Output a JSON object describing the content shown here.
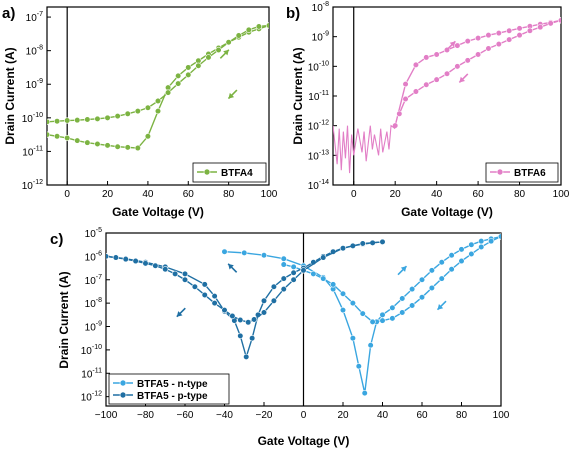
{
  "panel_labels": [
    "a)",
    "b)",
    "c)"
  ],
  "chart_data": [
    {
      "type": "line",
      "panel": "a)",
      "xlabel": "Gate Voltage (V)",
      "ylabel": "Drain Current (A)",
      "xlim": [
        -10,
        100
      ],
      "ylim_log10": [
        -12,
        -6.7
      ],
      "yscale": "log",
      "x_ticks": [
        0,
        20,
        40,
        60,
        80,
        100
      ],
      "x_tick_labels": [
        "0",
        "20",
        "40",
        "60",
        "80",
        "100"
      ],
      "y_ticks_log10": [
        -12,
        -11,
        -10,
        -9,
        -8,
        -7
      ],
      "y_tick_labels": [
        [
          "10",
          "-12"
        ],
        [
          "10",
          "-11"
        ],
        [
          "10",
          "-10"
        ],
        [
          "10",
          "-9"
        ],
        [
          "10",
          "-8"
        ],
        [
          "10",
          "-7"
        ]
      ],
      "color": "#7cb342",
      "legend": {
        "position": "bottom-right",
        "entries": [
          "BTFA4"
        ]
      },
      "arrows": [
        {
          "x": 78,
          "log10_y": -8.1,
          "direction": "up-right"
        },
        {
          "x": 82,
          "log10_y": -9.3,
          "direction": "down-left"
        }
      ],
      "series": [
        {
          "name": "BTFA4",
          "x": [
            -10,
            -5,
            0,
            5,
            10,
            15,
            20,
            25,
            30,
            35,
            40,
            45,
            50,
            55,
            60,
            65,
            70,
            75,
            80,
            85,
            90,
            95,
            100
          ],
          "log10_y": [
            -10.5,
            -10.55,
            -10.6,
            -10.68,
            -10.74,
            -10.78,
            -10.82,
            -10.86,
            -10.88,
            -10.9,
            -10.55,
            -9.8,
            -9.1,
            -8.75,
            -8.5,
            -8.3,
            -8.1,
            -7.92,
            -7.75,
            -7.6,
            -7.45,
            -7.35,
            -7.25
          ]
        },
        {
          "name": "",
          "x": [
            100,
            95,
            90,
            85,
            80,
            75,
            70,
            65,
            60,
            55,
            50,
            45,
            40,
            35,
            30,
            25,
            20,
            15,
            10,
            5,
            0,
            -5,
            -10
          ],
          "log10_y": [
            -7.25,
            -7.28,
            -7.38,
            -7.55,
            -7.75,
            -7.98,
            -8.2,
            -8.45,
            -8.72,
            -8.98,
            -9.25,
            -9.5,
            -9.7,
            -9.8,
            -9.88,
            -9.95,
            -10.0,
            -10.03,
            -10.05,
            -10.07,
            -10.08,
            -10.1,
            -10.12
          ]
        }
      ]
    },
    {
      "type": "line",
      "panel": "b)",
      "xlabel": "Gate Voltage (V)",
      "ylabel": "Drain Current (A)",
      "xlim": [
        -10,
        100
      ],
      "ylim_log10": [
        -14,
        -8
      ],
      "yscale": "log",
      "x_ticks": [
        0,
        20,
        40,
        60,
        80,
        100
      ],
      "x_tick_labels": [
        "0",
        "20",
        "40",
        "60",
        "80",
        "100"
      ],
      "y_ticks_log10": [
        -14,
        -13,
        -12,
        -11,
        -10,
        -9,
        -8
      ],
      "y_tick_labels": [
        [
          "10",
          "-14"
        ],
        [
          "10",
          "-13"
        ],
        [
          "10",
          "-12"
        ],
        [
          "10",
          "-11"
        ],
        [
          "10",
          "-10"
        ],
        [
          "10",
          "-9"
        ],
        [
          "10",
          "-8"
        ]
      ],
      "color": "#e27ec6",
      "legend": {
        "position": "bottom-right",
        "entries": [
          "BTFA6"
        ]
      },
      "arrows": [
        {
          "x": 47,
          "log10_y": -9.3,
          "direction": "up-right"
        },
        {
          "x": 53,
          "log10_y": -10.4,
          "direction": "down-left"
        }
      ],
      "series": [
        {
          "name": "BTFA6",
          "x": [
            20,
            25,
            30,
            35,
            40,
            45,
            50,
            55,
            60,
            65,
            70,
            75,
            80,
            85,
            90,
            95,
            100
          ],
          "log10_y": [
            -12.0,
            -10.6,
            -9.95,
            -9.7,
            -9.6,
            -9.45,
            -9.3,
            -9.15,
            -9.05,
            -8.95,
            -8.88,
            -8.8,
            -8.72,
            -8.65,
            -8.58,
            -8.52,
            -8.45
          ]
        },
        {
          "name": "",
          "x": [
            100,
            95,
            90,
            85,
            80,
            75,
            70,
            65,
            60,
            55,
            50,
            45,
            40,
            35,
            30,
            25,
            22
          ],
          "log10_y": [
            -8.45,
            -8.55,
            -8.68,
            -8.8,
            -8.95,
            -9.1,
            -9.25,
            -9.4,
            -9.6,
            -9.8,
            -10.0,
            -10.25,
            -10.45,
            -10.62,
            -10.85,
            -11.1,
            -11.6
          ]
        },
        {
          "name": "noise",
          "x": [
            -10,
            -8,
            -7,
            -6,
            -5,
            -4,
            -3,
            -2,
            -1,
            0,
            2,
            4,
            5,
            6,
            8,
            9,
            10,
            12,
            13,
            14,
            16,
            17,
            18,
            20
          ],
          "log10_y": [
            -12.0,
            -13.3,
            -12.1,
            -13.5,
            -12.2,
            -13.1,
            -12.0,
            -13.6,
            -12.3,
            -13.0,
            -12.1,
            -12.9,
            -12.2,
            -13.2,
            -12.0,
            -12.8,
            -12.3,
            -13.0,
            -12.1,
            -12.9,
            -12.2,
            -12.8,
            -12.0,
            -12.1
          ]
        }
      ]
    },
    {
      "type": "line",
      "panel": "c)",
      "xlabel": "Gate Voltage (V)",
      "ylabel": "Drain Current (A)",
      "xlim": [
        -100,
        100
      ],
      "ylim_log10": [
        -12.4,
        -5
      ],
      "yscale": "log",
      "x_ticks": [
        -100,
        -80,
        -60,
        -40,
        -20,
        0,
        20,
        40,
        60,
        80,
        100
      ],
      "x_tick_labels": [
        "−100",
        "−80",
        "−60",
        "−40",
        "−20",
        "0",
        "20",
        "40",
        "60",
        "80",
        "100"
      ],
      "y_ticks_log10": [
        -12,
        -11,
        -10,
        -9,
        -8,
        -7,
        -6,
        -5
      ],
      "y_tick_labels": [
        [
          "10",
          "-12"
        ],
        [
          "10",
          "-11"
        ],
        [
          "10",
          "-10"
        ],
        [
          "10",
          "-9"
        ],
        [
          "10",
          "-8"
        ],
        [
          "10",
          "-7"
        ],
        [
          "10",
          "-6"
        ],
        [
          "10",
          "-5"
        ]
      ],
      "legend": {
        "position": "bottom-left",
        "entries": [
          "BTFA5 - n-type",
          "BTFA5 - p-type"
        ]
      },
      "colors": {
        "n_type": "#3aa6e0",
        "p_type": "#1f6fa3"
      },
      "arrows": [
        {
          "x": -36,
          "log10_y": -6.5,
          "direction": "up-left"
        },
        {
          "x": -62,
          "log10_y": -8.4,
          "direction": "down-left"
        },
        {
          "x": 50,
          "log10_y": -6.6,
          "direction": "up-right"
        },
        {
          "x": 70,
          "log10_y": -8.1,
          "direction": "down-left"
        }
      ],
      "series": [
        {
          "name": "BTFA5 - n-type",
          "x": [
            -40,
            -30,
            -20,
            -10,
            0,
            10,
            15,
            20,
            25,
            28,
            31,
            34,
            37,
            40,
            45,
            50,
            55,
            60,
            65,
            70,
            75,
            80,
            85,
            90,
            95,
            100
          ],
          "log10_y": [
            -5.8,
            -5.85,
            -5.95,
            -6.1,
            -6.4,
            -6.9,
            -7.4,
            -8.3,
            -9.5,
            -10.7,
            -11.85,
            -9.8,
            -8.8,
            -8.5,
            -8.2,
            -7.8,
            -7.4,
            -7.0,
            -6.6,
            -6.25,
            -5.95,
            -5.7,
            -5.5,
            -5.35,
            -5.25,
            -5.15
          ]
        },
        {
          "name": "",
          "x": [
            100,
            95,
            90,
            85,
            80,
            75,
            70,
            65,
            60,
            55,
            50,
            45,
            40,
            35,
            30,
            25,
            20,
            15,
            10,
            5,
            0,
            -5,
            -10
          ],
          "log10_y": [
            -5.15,
            -5.35,
            -5.6,
            -5.9,
            -6.2,
            -6.55,
            -6.95,
            -7.35,
            -7.75,
            -8.1,
            -8.4,
            -8.65,
            -8.75,
            -8.8,
            -8.45,
            -8.0,
            -7.6,
            -7.2,
            -6.95,
            -6.75,
            -6.6,
            -6.45,
            -6.35
          ]
        },
        {
          "name": "BTFA5 - p-type",
          "x": [
            -100,
            -90,
            -80,
            -70,
            -60,
            -50,
            -45,
            -40,
            -35,
            -32,
            -29,
            -26,
            -23,
            -20,
            -15,
            -10,
            -5,
            0,
            5,
            10,
            15,
            20,
            25,
            30,
            35,
            40
          ],
          "log10_y": [
            -6.0,
            -6.1,
            -6.25,
            -6.45,
            -6.75,
            -7.2,
            -7.7,
            -8.35,
            -8.75,
            -9.4,
            -10.3,
            -9.5,
            -8.5,
            -7.9,
            -7.3,
            -6.95,
            -6.7,
            -6.5,
            -6.25,
            -6.0,
            -5.8,
            -5.65,
            -5.55,
            -5.48,
            -5.42,
            -5.38
          ]
        },
        {
          "name": "",
          "x": [
            40,
            30,
            20,
            10,
            0,
            -5,
            -10,
            -15,
            -20,
            -25,
            -28,
            -32,
            -36,
            -40,
            -45,
            -50,
            -55,
            -60,
            -65,
            -70,
            -75,
            -80,
            -85,
            -90,
            -95,
            -100
          ],
          "log10_y": [
            -5.38,
            -5.45,
            -5.65,
            -6.05,
            -6.6,
            -7.0,
            -7.4,
            -7.9,
            -8.4,
            -8.7,
            -8.82,
            -8.72,
            -8.55,
            -8.3,
            -8.0,
            -7.65,
            -7.3,
            -7.0,
            -6.75,
            -6.55,
            -6.4,
            -6.3,
            -6.2,
            -6.12,
            -6.05,
            -6.0
          ]
        }
      ]
    }
  ]
}
